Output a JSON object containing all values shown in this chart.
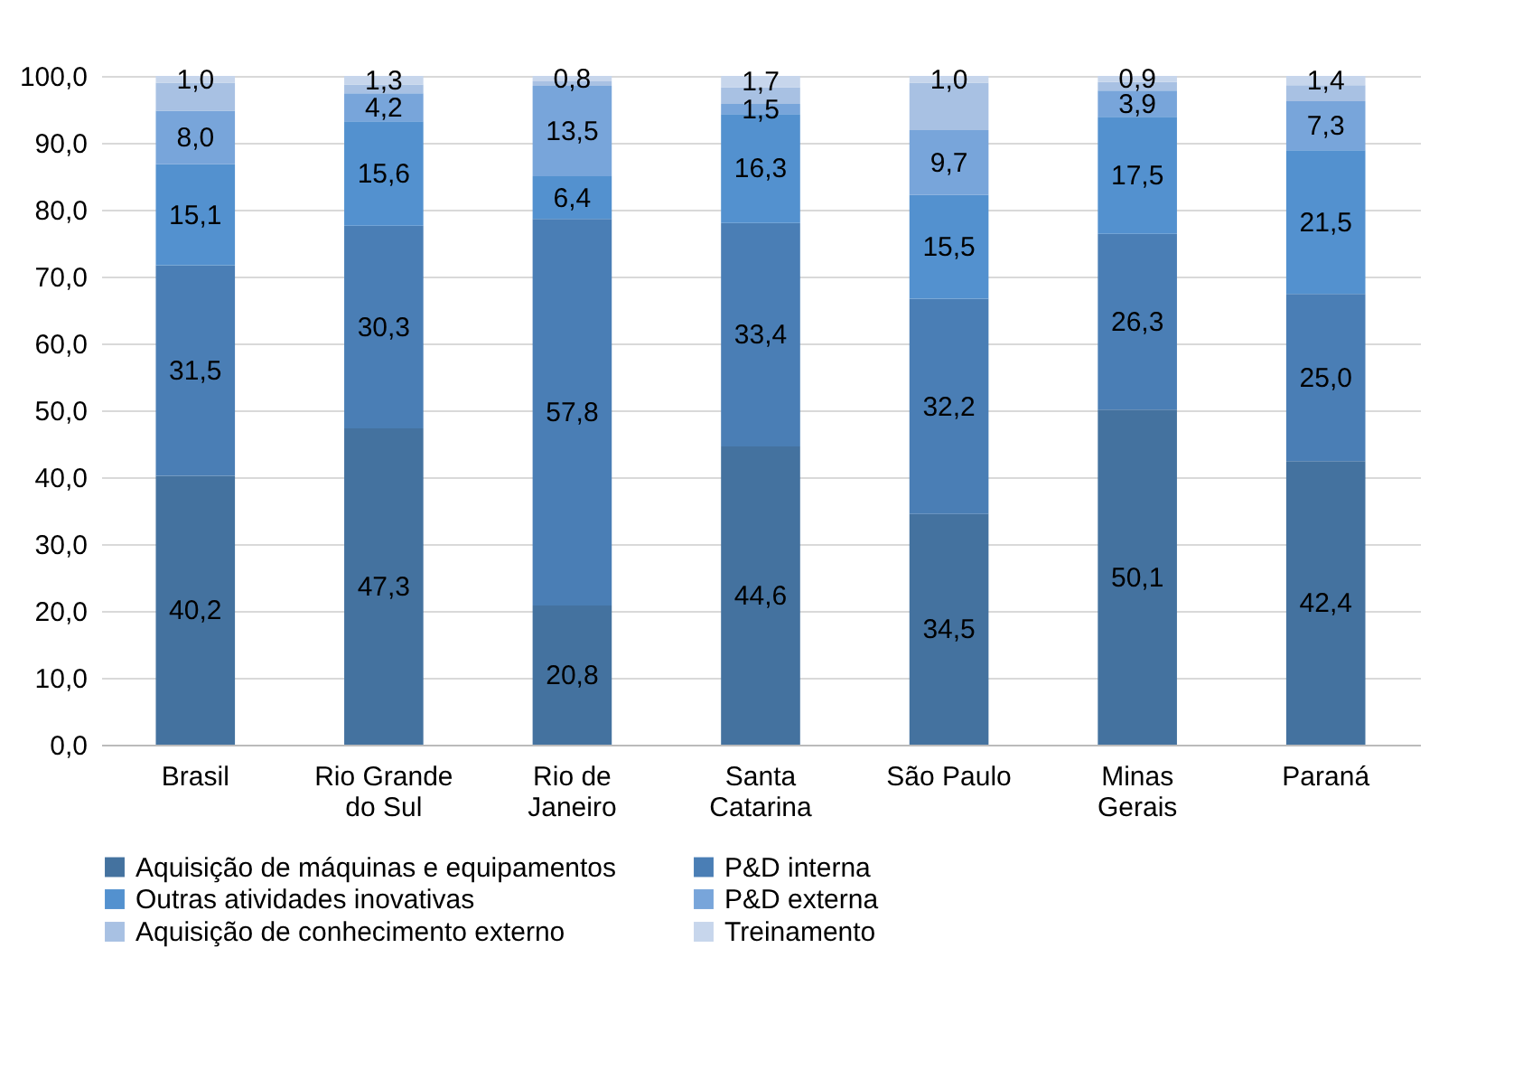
{
  "chart_data": {
    "type": "bar",
    "stacked": true,
    "categories": [
      "Brasil",
      "Rio Grande\ndo Sul",
      "Rio de\nJaneiro",
      "Santa\nCatarina",
      "São Paulo",
      "Minas\nGerais",
      "Paraná"
    ],
    "series": [
      {
        "name": "Aquisição de máquinas e equipamentos",
        "color": "#44729f",
        "values": [
          40.2,
          47.3,
          20.8,
          44.6,
          34.5,
          50.1,
          42.4
        ],
        "value_labels": [
          "40,2",
          "47,3",
          "20,8",
          "44,6",
          "34,5",
          "50,1",
          "42,4"
        ]
      },
      {
        "name": "P&D interna",
        "color": "#4a7eb5",
        "values": [
          31.5,
          30.3,
          57.8,
          33.4,
          32.2,
          26.3,
          25.0
        ],
        "value_labels": [
          "31,5",
          "30,3",
          "57,8",
          "33,4",
          "32,2",
          "26,3",
          "25,0"
        ]
      },
      {
        "name": "Outras atividades inovativas",
        "color": "#5391cf",
        "values": [
          15.1,
          15.6,
          6.4,
          16.3,
          15.5,
          17.5,
          21.5
        ],
        "value_labels": [
          "15,1",
          "15,6",
          "6,4",
          "16,3",
          "15,5",
          "17,5",
          "21,5"
        ]
      },
      {
        "name": "P&D externa",
        "color": "#78a5da",
        "values": [
          8.0,
          4.2,
          13.5,
          1.5,
          9.7,
          3.9,
          7.3
        ],
        "value_labels": [
          "8,0",
          "4,2",
          "13,5",
          "1,5",
          "9,7",
          "3,9",
          "7,3"
        ]
      },
      {
        "name": "Aquisição de conhecimento externo",
        "color": "#a8c1e3",
        "values": [
          4.2,
          1.3,
          0.7,
          2.5,
          7.1,
          1.3,
          2.4
        ]
      },
      {
        "name": "Treinamento",
        "color": "#c7d6ec",
        "values": [
          1.0,
          1.3,
          0.8,
          1.7,
          1.0,
          0.9,
          1.4
        ],
        "value_labels": [
          "1,0",
          "1,3",
          "0,8",
          "1,7",
          "1,0",
          "0,9",
          "1,4"
        ]
      }
    ],
    "ylim": [
      0,
      100
    ],
    "yticks": [
      {
        "value": 0,
        "label": "0,0"
      },
      {
        "value": 10,
        "label": "10,0"
      },
      {
        "value": 20,
        "label": "20,0"
      },
      {
        "value": 30,
        "label": "30,0"
      },
      {
        "value": 40,
        "label": "40,0"
      },
      {
        "value": 50,
        "label": "50,0"
      },
      {
        "value": 60,
        "label": "60,0"
      },
      {
        "value": 70,
        "label": "70,0"
      },
      {
        "value": 80,
        "label": "80,0"
      },
      {
        "value": 90,
        "label": "90,0"
      },
      {
        "value": 100,
        "label": "100,0"
      }
    ],
    "grid": "y",
    "legend": "bottom"
  }
}
